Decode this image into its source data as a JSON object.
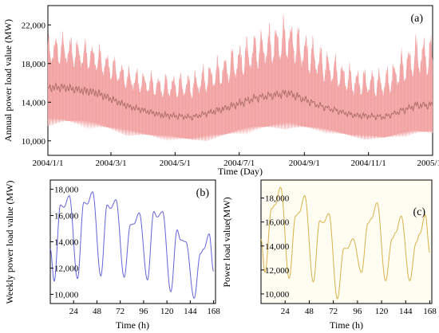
{
  "chart_data": [
    {
      "id": "a",
      "type": "area",
      "panel_label": "(a)",
      "xlabel": "Time (Day)",
      "ylabel": "Annual power load value (MW)",
      "x_ticks": [
        "2004/1/1",
        "2004/3/1",
        "2004/5/1",
        "2004/7/1",
        "2004/9/1",
        "2004/11/1",
        "2005/1/1"
      ],
      "y_ticks": [
        "10,000",
        "14,000",
        "18,000",
        "22,000"
      ],
      "y_tick_values": [
        10000,
        14000,
        18000,
        22000
      ],
      "xlim": [
        "2004-01-01",
        "2005-01-01"
      ],
      "ylim": [
        8500,
        24000
      ],
      "band_color": "#f4a9a8",
      "mean_color": "#b0706a",
      "monthly": {
        "x": [
          "2004-01",
          "2004-02",
          "2004-03",
          "2004-04",
          "2004-05",
          "2004-06",
          "2004-07",
          "2004-08",
          "2004-09",
          "2004-10",
          "2004-11",
          "2004-12"
        ],
        "min": [
          11500,
          11000,
          10500,
          10000,
          9800,
          10200,
          10800,
          11200,
          10800,
          10200,
          10000,
          10500
        ],
        "mean": [
          15000,
          14500,
          13200,
          12300,
          12000,
          12800,
          13800,
          14200,
          13000,
          12200,
          12000,
          13000
        ],
        "max": [
          21500,
          20500,
          18000,
          17200,
          17500,
          19500,
          22000,
          23500,
          20500,
          18000,
          17800,
          21500
        ]
      }
    },
    {
      "id": "b",
      "type": "line",
      "panel_label": "(b)",
      "xlabel": "Time (h)",
      "ylabel": "Weekly power load value (MW)",
      "x_ticks": [
        "24",
        "48",
        "72",
        "96",
        "120",
        "144",
        "168"
      ],
      "x_tick_values": [
        24,
        48,
        72,
        96,
        120,
        144,
        168
      ],
      "y_ticks": [
        "10,000",
        "12,000",
        "14,000",
        "16,000",
        "18,000"
      ],
      "y_tick_values": [
        10000,
        12000,
        14000,
        16000,
        18000
      ],
      "xlim": [
        0,
        170
      ],
      "ylim": [
        9300,
        18700
      ],
      "line_color": "#6464dc",
      "daily_min": [
        11000,
        11200,
        11400,
        11300,
        11100,
        10200,
        9700
      ],
      "daily_peak1": [
        16800,
        17000,
        16800,
        15300,
        16300,
        14900,
        13100
      ],
      "daily_peak2": [
        17500,
        17800,
        17200,
        16200,
        16300,
        14000,
        14600
      ]
    },
    {
      "id": "c",
      "type": "line",
      "panel_label": "(c)",
      "xlabel": "Time (h)",
      "ylabel": "Power load value(MW)",
      "x_ticks": [
        "24",
        "48",
        "72",
        "96",
        "120",
        "144",
        "168"
      ],
      "x_tick_values": [
        24,
        48,
        72,
        96,
        120,
        144,
        168
      ],
      "y_ticks": [
        "10,000",
        "12,000",
        "14,000",
        "16,000",
        "18,000"
      ],
      "y_tick_values": [
        10000,
        12000,
        14000,
        16000,
        18000
      ],
      "xlim": [
        0,
        170
      ],
      "ylim": [
        9200,
        19500
      ],
      "line_color": "#d8b24a",
      "daily_min": [
        11800,
        11300,
        11000,
        9600,
        11800,
        11100,
        11100
      ],
      "daily_peak1": [
        17100,
        16500,
        16100,
        13800,
        15900,
        14600,
        14300
      ],
      "daily_peak2": [
        18900,
        18200,
        16700,
        14600,
        17600,
        16500,
        16600
      ]
    }
  ]
}
